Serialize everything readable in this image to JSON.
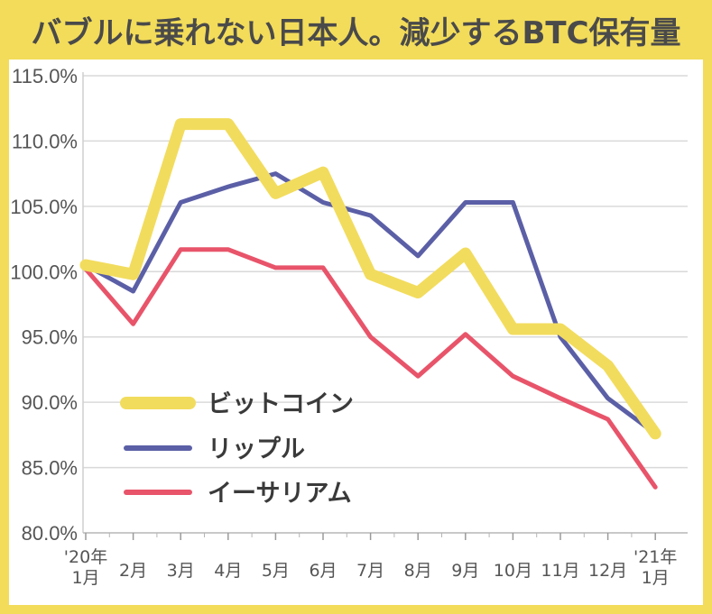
{
  "title": "バブルに乗れない日本人。減少するBTC保有量",
  "chart_data": {
    "type": "line",
    "categories": [
      "'20年 1月",
      "2月",
      "3月",
      "4月",
      "5月",
      "6月",
      "7月",
      "8月",
      "9月",
      "10月",
      "11月",
      "12月",
      "'21年 1月"
    ],
    "category_lines": [
      [
        "'20年",
        "1月"
      ],
      [
        "2月"
      ],
      [
        "3月"
      ],
      [
        "4月"
      ],
      [
        "5月"
      ],
      [
        "6月"
      ],
      [
        "7月"
      ],
      [
        "8月"
      ],
      [
        "9月"
      ],
      [
        "10月"
      ],
      [
        "11月"
      ],
      [
        "12月"
      ],
      [
        "'21年",
        "1月"
      ]
    ],
    "y_ticks": [
      "115.0%",
      "110.0%",
      "105.0%",
      "100.0%",
      "95.0%",
      "90.0%",
      "85.0%",
      "80.0%"
    ],
    "y_tick_values": [
      115,
      110,
      105,
      100,
      95,
      90,
      85,
      80
    ],
    "ylim": [
      80,
      115
    ],
    "grid": true,
    "legend_placement": "bottom-left",
    "series": [
      {
        "name": "ビットコイン",
        "color": "#f2dc5d",
        "x": [
          0,
          1,
          2,
          3,
          4,
          5,
          6,
          7,
          8,
          9,
          10,
          11,
          12
        ],
        "values": [
          100.5,
          99.8,
          111.3,
          111.3,
          106.0,
          107.6,
          99.8,
          98.4,
          101.4,
          95.6,
          95.6,
          92.8,
          87.6
        ]
      },
      {
        "name": "リップル",
        "color": "#5b5fa6",
        "x": [
          0,
          1,
          2,
          3,
          4,
          5,
          6,
          7,
          8,
          9,
          10,
          11,
          12
        ],
        "values": [
          100.5,
          98.5,
          105.3,
          106.5,
          107.5,
          105.3,
          104.3,
          101.2,
          105.3,
          105.3,
          95.0,
          90.3,
          87.6
        ]
      },
      {
        "name": "イーサリアム",
        "color": "#e8546a",
        "x": [
          0,
          1,
          2,
          3,
          4,
          5,
          6,
          7,
          8,
          9,
          10,
          11,
          12
        ],
        "values": [
          100.2,
          96.0,
          101.7,
          101.7,
          100.3,
          100.3,
          95.0,
          92.0,
          95.2,
          92.0,
          90.3,
          88.7,
          83.5
        ]
      }
    ]
  }
}
